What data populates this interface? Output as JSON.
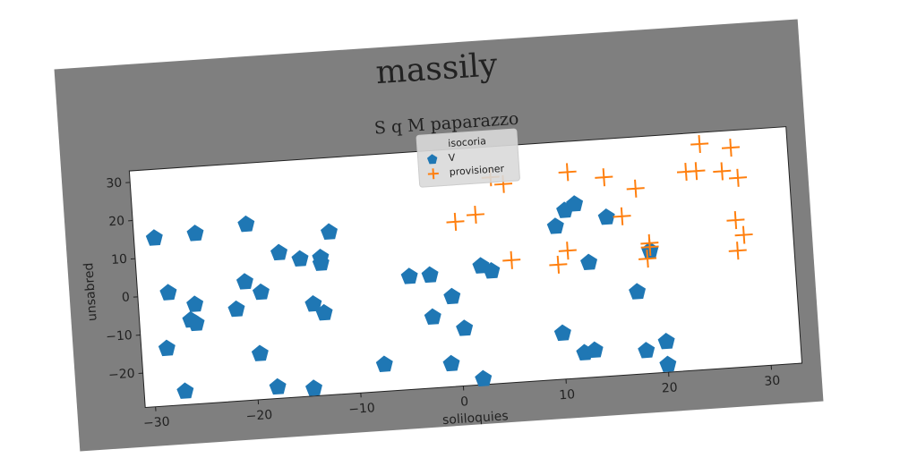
{
  "chart_data": {
    "type": "scatter",
    "title": "massily",
    "subtitle": "S q M paparazzo",
    "x_label": "soliloquies",
    "y_label": "unsabred",
    "legend_title": "isocoria",
    "legend": "upper center",
    "xlim": [
      -31,
      33
    ],
    "ylim": [
      -29,
      33
    ],
    "xticks": [
      {
        "value": -30,
        "label": "−30"
      },
      {
        "value": -20,
        "label": "−20"
      },
      {
        "value": -10,
        "label": "−10"
      },
      0,
      10,
      20,
      30
    ],
    "yticks": [
      {
        "value": -20,
        "label": "−20"
      },
      {
        "value": -10,
        "label": "−10"
      },
      0,
      10,
      20,
      30
    ],
    "series": [
      {
        "name": "V",
        "color": "#1f77b4",
        "marker": "pentagon",
        "x": [
          -29,
          -25,
          -28,
          -28.5,
          -27,
          -26,
          -25.5,
          -25.5,
          -20,
          -20.5,
          -21.5,
          -19,
          -19.5,
          -18,
          -17,
          -15,
          -13,
          -13,
          -12,
          -14,
          -13,
          -14.5,
          -7.5,
          -4.5,
          -2.5,
          -2.5,
          -1,
          -0.5,
          0.5,
          2,
          2.5,
          3.5,
          10,
          11,
          12,
          15,
          13,
          10,
          12,
          13,
          17.5,
          18,
          19,
          20,
          20
        ],
        "values": [
          15,
          15.5,
          0.5,
          -14,
          -25.5,
          -7,
          -3,
          -8,
          17,
          2,
          -5,
          -1,
          -17,
          -26,
          9,
          7,
          7,
          5.5,
          13.5,
          -5,
          -7.5,
          -27,
          -22,
          0.5,
          0.5,
          -10.5,
          -23,
          -5.5,
          -14,
          -27.5,
          2,
          0.5,
          11,
          15,
          16.5,
          12.5,
          1,
          -17,
          -22.5,
          -22,
          -7.5,
          -23,
          3,
          -21,
          -27
        ]
      },
      {
        "name": "provisioner",
        "color": "#ff7f0e",
        "marker": "plus",
        "x": [
          0.3,
          2.3,
          4,
          5.2,
          5.5,
          10,
          11,
          11.5,
          15,
          16.5,
          18,
          18.7,
          19,
          19,
          24.5,
          23,
          24,
          27.5,
          26.5,
          28,
          27.5,
          28.2,
          27.5
        ],
        "values": [
          14,
          15.5,
          25,
          23,
          3,
          1,
          4.5,
          25,
          23,
          12.5,
          19.5,
          1,
          4,
          5,
          30,
          23,
          23,
          28.5,
          22.5,
          20.5,
          9.5,
          5.5,
          1.5
        ]
      }
    ]
  }
}
